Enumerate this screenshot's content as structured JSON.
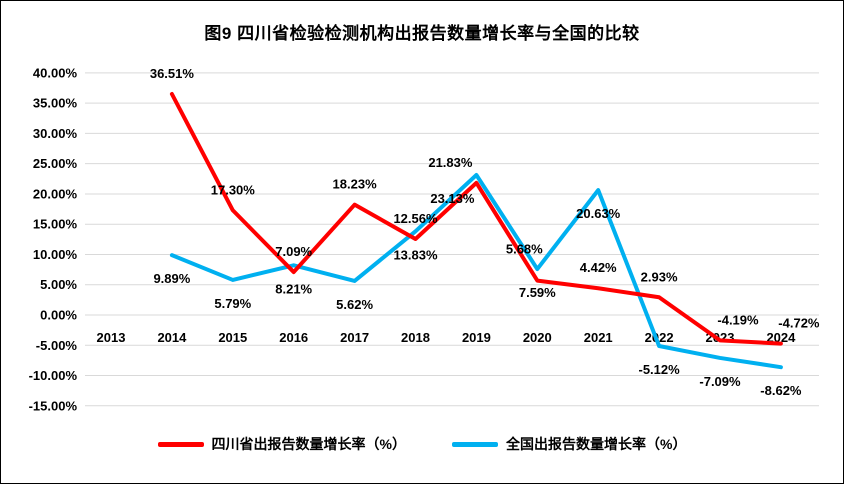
{
  "title": "图9  四川省检验检测机构出报告数量增长率与全国的比较",
  "chart_data": {
    "type": "line",
    "title": "图9  四川省检验检测机构出报告数量增长率与全国的比较",
    "categories": [
      2013,
      2014,
      2015,
      2016,
      2017,
      2018,
      2019,
      2020,
      2021,
      2022,
      2023,
      2024
    ],
    "series": [
      {
        "name": "四川省出报告数量增长率（%）",
        "color": "#FF0000",
        "values": [
          null,
          36.51,
          17.3,
          7.09,
          18.23,
          12.56,
          21.83,
          5.68,
          4.42,
          2.93,
          -4.19,
          -4.72
        ]
      },
      {
        "name": "全国出报告数量增长率（%）",
        "color": "#00B0F0",
        "values": [
          null,
          9.89,
          5.79,
          8.21,
          5.62,
          13.83,
          23.13,
          7.59,
          20.63,
          -5.12,
          -7.09,
          -8.62
        ]
      }
    ],
    "ylim": [
      -15,
      40
    ],
    "ytick_step": 5,
    "ytick_format": "0.00%",
    "grid": true,
    "legend_position": "bottom",
    "gridline_color": "#D9D9D9"
  }
}
